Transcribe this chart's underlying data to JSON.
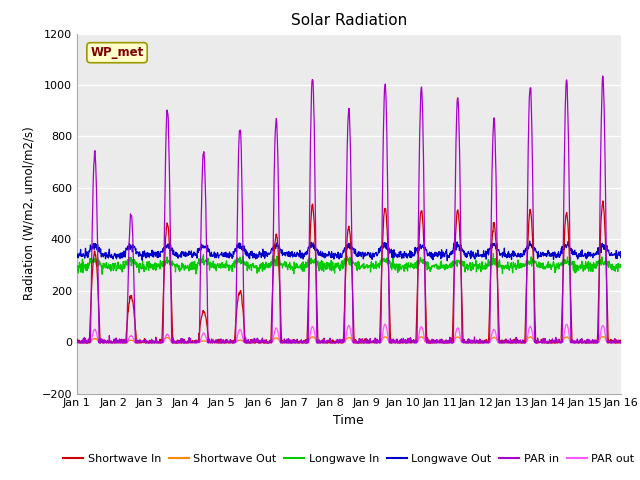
{
  "title": "Solar Radiation",
  "xlabel": "Time",
  "ylabel": "Radiation (W/m2, umol/m2/s)",
  "ylim": [
    -200,
    1200
  ],
  "yticks": [
    -200,
    0,
    200,
    400,
    600,
    800,
    1000,
    1200
  ],
  "xlim": [
    0,
    15
  ],
  "xtick_labels": [
    "Jan 1",
    "Jan 2",
    "Jan 3",
    "Jan 4",
    "Jan 5",
    "Jan 6",
    "Jan 7",
    "Jan 8",
    "Jan 9",
    "Jan 10",
    "Jan 11",
    "Jan 12",
    "Jan 13",
    "Jan 14",
    "Jan 15",
    "Jan 16"
  ],
  "bg_color": "#ffffff",
  "plot_bg": "#ebebeb",
  "legend_label": "WP_met",
  "series_colors": {
    "sw_in": "#cc0000",
    "sw_out": "#ff8800",
    "lw_in": "#00cc00",
    "lw_out": "#0000cc",
    "par_in": "#aa00cc",
    "par_out": "#ff55ff"
  },
  "legend_items": [
    {
      "label": "Shortwave In",
      "color": "#cc0000"
    },
    {
      "label": "Shortwave Out",
      "color": "#ff8800"
    },
    {
      "label": "Longwave In",
      "color": "#00cc00"
    },
    {
      "label": "Longwave Out",
      "color": "#0000cc"
    },
    {
      "label": "PAR in",
      "color": "#aa00cc"
    },
    {
      "label": "PAR out",
      "color": "#ff55ff"
    }
  ],
  "n_days": 15,
  "pts_per_day": 96,
  "sw_peaks": [
    350,
    180,
    460,
    120,
    200,
    420,
    530,
    450,
    520,
    510,
    510,
    460,
    510,
    500,
    540
  ],
  "par_peaks": [
    730,
    500,
    910,
    740,
    830,
    870,
    1030,
    900,
    1000,
    990,
    950,
    870,
    1000,
    1020,
    1030
  ],
  "par_out_peaks": [
    50,
    25,
    30,
    35,
    50,
    55,
    60,
    65,
    70,
    60,
    55,
    50,
    60,
    70,
    65
  ],
  "lw_in_base": 300,
  "lw_out_base": 340
}
